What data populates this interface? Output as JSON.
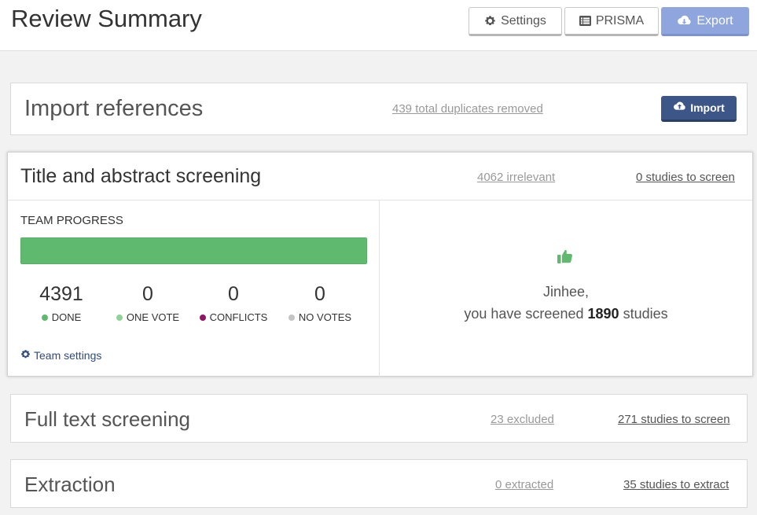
{
  "header": {
    "title": "Review Summary",
    "settings_label": "Settings",
    "prisma_label": "PRISMA",
    "export_label": "Export"
  },
  "import_references": {
    "title": "Import references",
    "duplicates_link": "439 total duplicates removed",
    "import_label": "Import"
  },
  "title_abstract": {
    "title": "Title and abstract screening",
    "irrelevant_link": "4062 irrelevant",
    "to_screen_link": "0 studies to screen",
    "team_progress_label": "TEAM PROGRESS",
    "progress_fraction": 1.0,
    "stats": [
      {
        "value": "4391",
        "label": "DONE",
        "color": "#5fb96e"
      },
      {
        "value": "0",
        "label": "ONE VOTE",
        "color": "#8fd39a"
      },
      {
        "value": "0",
        "label": "CONFLICTS",
        "color": "#8e1464"
      },
      {
        "value": "0",
        "label": "NO VOTES",
        "color": "#c4c4c4"
      }
    ],
    "team_settings_label": "Team settings",
    "user_name": "Jinhee,",
    "screened_prefix": "you have screened",
    "screened_count": "1890",
    "screened_suffix": "studies"
  },
  "full_text": {
    "title": "Full text screening",
    "excluded_link": "23 excluded",
    "to_screen_link": "271 studies to screen"
  },
  "extraction": {
    "title": "Extraction",
    "extracted_link": "0 extracted",
    "to_extract_link": "35 studies to extract"
  },
  "colors": {
    "progress_green": "#5fb96e",
    "export_blue": "#8ea6dd",
    "import_navy": "#3c5688"
  }
}
